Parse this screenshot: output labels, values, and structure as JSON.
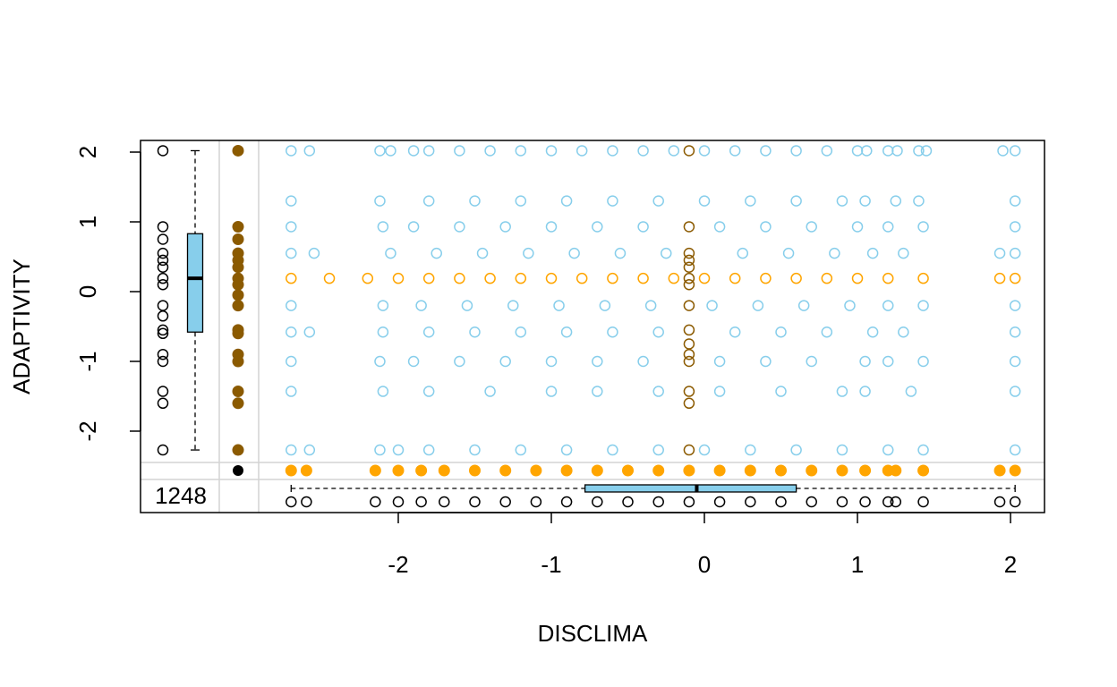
{
  "chart_data": {
    "type": "scatter",
    "xlabel": "DISCLIMA",
    "ylabel": "ADAPTIVITY",
    "xlim": [
      -3.684,
      2.222
    ],
    "ylim": [
      -3.167,
      2.167
    ],
    "xticks": [
      -2,
      -1,
      0,
      1,
      2
    ],
    "yticks": [
      -2,
      -1,
      0,
      1,
      2
    ],
    "missing_count": 1248,
    "series": [
      {
        "color": "#87ceeb",
        "filled": false,
        "x": [
          -2.7,
          -2.58,
          -2.12,
          -2.05,
          -1.9,
          -1.8,
          -1.6,
          -1.4,
          -1.2,
          -1.0,
          -0.8,
          -0.6,
          -0.4,
          -0.2,
          0.0,
          0.2,
          0.4,
          0.6,
          0.8,
          1.0,
          1.06,
          1.2,
          1.26,
          1.4,
          1.45,
          1.95,
          2.03,
          -2.7,
          -2.12,
          -1.8,
          -1.5,
          -1.2,
          -0.9,
          -0.6,
          -0.3,
          0,
          0.3,
          0.6,
          0.9,
          1.05,
          1.25,
          1.4,
          2.03,
          -2.7,
          -2.1,
          -1.9,
          -1.6,
          -1.3,
          -1.0,
          -0.7,
          -0.4,
          0.1,
          0.4,
          0.7,
          1.0,
          1.2,
          1.43,
          2.03,
          -2.7,
          -2.55,
          -2.05,
          -1.75,
          -1.45,
          -1.15,
          -0.85,
          -0.55,
          -0.25,
          0.25,
          0.55,
          0.85,
          1.1,
          1.3,
          1.93,
          2.03,
          -2.7,
          -2.1,
          -1.85,
          -1.55,
          -1.25,
          -0.95,
          -0.65,
          -0.35,
          0.05,
          0.35,
          0.65,
          0.95,
          1.2,
          1.43,
          2.03,
          -2.7,
          -2.58,
          -2.1,
          -1.8,
          -1.5,
          -1.2,
          -0.9,
          -0.6,
          -0.3,
          0.2,
          0.5,
          0.8,
          1.1,
          1.3,
          2.03,
          -2.7,
          -2.12,
          -1.9,
          -1.6,
          -1.3,
          -1.0,
          -0.7,
          -0.4,
          0.1,
          0.4,
          0.7,
          1.05,
          1.2,
          1.43,
          2.03,
          -2.7,
          -2.1,
          -1.8,
          -1.4,
          -1.0,
          -0.7,
          -0.3,
          0.1,
          0.5,
          0.9,
          1.05,
          1.35,
          2.03,
          -2.7,
          -2.58,
          -2.12,
          -2.0,
          -1.8,
          -1.5,
          -1.2,
          -0.9,
          -0.6,
          -0.3,
          0.0,
          0.3,
          0.6,
          0.9,
          1.2,
          1.43,
          2.03
        ],
        "y": [
          2.02,
          2.02,
          2.02,
          2.02,
          2.02,
          2.02,
          2.02,
          2.02,
          2.02,
          2.02,
          2.02,
          2.02,
          2.02,
          2.02,
          2.02,
          2.02,
          2.02,
          2.02,
          2.02,
          2.02,
          2.02,
          2.02,
          2.02,
          2.02,
          2.02,
          2.02,
          2.02,
          1.3,
          1.3,
          1.3,
          1.3,
          1.3,
          1.3,
          1.3,
          1.3,
          1.3,
          1.3,
          1.3,
          1.3,
          1.3,
          1.3,
          1.3,
          1.3,
          0.93,
          0.93,
          0.93,
          0.93,
          0.93,
          0.93,
          0.93,
          0.93,
          0.93,
          0.93,
          0.93,
          0.93,
          0.93,
          0.93,
          0.93,
          0.55,
          0.55,
          0.55,
          0.55,
          0.55,
          0.55,
          0.55,
          0.55,
          0.55,
          0.55,
          0.55,
          0.55,
          0.55,
          0.55,
          0.55,
          0.55,
          -0.2,
          -0.2,
          -0.2,
          -0.2,
          -0.2,
          -0.2,
          -0.2,
          -0.2,
          -0.2,
          -0.2,
          -0.2,
          -0.2,
          -0.2,
          -0.2,
          -0.2,
          -0.58,
          -0.58,
          -0.58,
          -0.58,
          -0.58,
          -0.58,
          -0.58,
          -0.58,
          -0.58,
          -0.58,
          -0.58,
          -0.58,
          -0.58,
          -0.58,
          -0.58,
          -1.0,
          -1.0,
          -1.0,
          -1.0,
          -1.0,
          -1.0,
          -1.0,
          -1.0,
          -1.0,
          -1.0,
          -1.0,
          -1.0,
          -1.0,
          -1.0,
          -1.0,
          -1.43,
          -1.43,
          -1.43,
          -1.43,
          -1.43,
          -1.43,
          -1.43,
          -1.43,
          -1.43,
          -1.43,
          -1.43,
          -1.43,
          -1.43,
          -2.27,
          -2.27,
          -2.27,
          -2.27,
          -2.27,
          -2.27,
          -2.27,
          -2.27,
          -2.27,
          -2.27,
          -2.27,
          -2.27,
          -2.27,
          -2.27,
          -2.27,
          -2.27,
          -2.27
        ]
      },
      {
        "color": "#ffa500",
        "filled": false,
        "x": [
          -2.7,
          -2.45,
          -2.2,
          -2.0,
          -1.8,
          -1.6,
          -1.4,
          -1.2,
          -1.0,
          -0.8,
          -0.6,
          -0.4,
          -0.2,
          0.0,
          0.2,
          0.4,
          0.6,
          0.8,
          1.0,
          1.2,
          1.43,
          1.93,
          2.03
        ],
        "y": [
          0.19,
          0.19,
          0.19,
          0.19,
          0.19,
          0.19,
          0.19,
          0.19,
          0.19,
          0.19,
          0.19,
          0.19,
          0.19,
          0.19,
          0.19,
          0.19,
          0.19,
          0.19,
          0.19,
          0.19,
          0.19,
          0.19,
          0.19
        ]
      },
      {
        "color": "#8b5a00",
        "filled": false,
        "x": [
          -0.1,
          -0.1,
          -0.1,
          -0.1,
          -0.1,
          -0.1,
          -0.1,
          -0.1,
          -0.1,
          -0.1,
          -0.1,
          -0.1,
          -0.1,
          -0.1,
          -0.1
        ],
        "y": [
          2.02,
          0.93,
          0.55,
          0.45,
          0.35,
          0.19,
          0.1,
          -0.2,
          -0.55,
          -0.75,
          -0.9,
          -1.0,
          -1.43,
          -1.6,
          -2.27
        ]
      }
    ],
    "left_margin_points": {
      "color": "#8b5a00",
      "values": [
        2.02,
        0.93,
        0.75,
        0.55,
        0.45,
        0.35,
        0.19,
        0.1,
        -0.05,
        -0.2,
        -0.55,
        -0.6,
        -0.9,
        -1.0,
        -1.43,
        -1.6,
        -2.27
      ]
    },
    "left_rug": {
      "color": "#000000",
      "values": [
        2.02,
        0.93,
        0.75,
        0.55,
        0.45,
        0.35,
        0.19,
        0.1,
        -0.2,
        -0.35,
        -0.55,
        -0.6,
        -0.9,
        -1.0,
        -1.43,
        -1.6,
        -2.27
      ]
    },
    "left_box": {
      "color": "#87ceeb",
      "min": -2.27,
      "q1": -0.58,
      "median": 0.19,
      "q3": 0.83,
      "max": 2.02
    },
    "bottom_margin_points": {
      "color": "#ffa500",
      "values": [
        -2.7,
        -2.6,
        -2.15,
        -2.0,
        -1.85,
        -1.7,
        -1.5,
        -1.3,
        -1.1,
        -0.9,
        -0.7,
        -0.5,
        -0.3,
        -0.1,
        0.1,
        0.3,
        0.5,
        0.7,
        0.9,
        1.05,
        1.2,
        1.25,
        1.43,
        1.93,
        2.03
      ]
    },
    "bottom_rug": {
      "color": "#000000",
      "values": [
        -2.7,
        -2.6,
        -2.15,
        -2.0,
        -1.85,
        -1.7,
        -1.5,
        -1.3,
        -1.1,
        -0.9,
        -0.7,
        -0.5,
        -0.3,
        -0.1,
        0.1,
        0.3,
        0.5,
        0.7,
        0.9,
        1.05,
        1.2,
        1.25,
        1.43,
        1.93,
        2.03
      ]
    },
    "bottom_box": {
      "color": "#87ceeb",
      "min": -2.7,
      "q1": -0.78,
      "median": -0.05,
      "q3": 0.6,
      "max": 2.03
    }
  }
}
